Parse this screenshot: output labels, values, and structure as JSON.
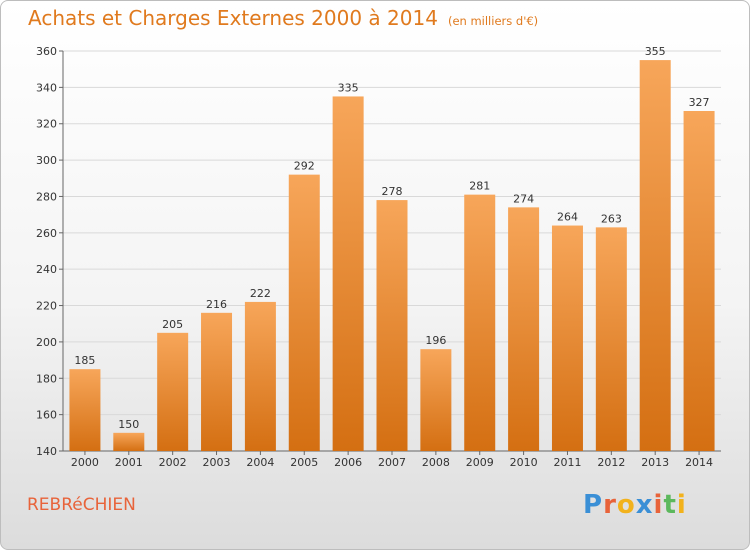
{
  "header": {
    "title": "Achats et Charges Externes 2000 à 2014",
    "subtitle": "(en milliers d'€)"
  },
  "footer": {
    "commune": "REBRéCHIEN",
    "logo": "Proxiti",
    "logo_colors": [
      "#3a8fd6",
      "#e8633a",
      "#f2b21c",
      "#3a8fd6",
      "#e8633a",
      "#5cb85c",
      "#f2b21c"
    ]
  },
  "colors": {
    "bar_top": "#f7a65a",
    "bar_bottom": "#d46f12",
    "title": "#e07a1e",
    "commune": "#e8633a",
    "grid": "#d9d9d9"
  },
  "chart_data": {
    "type": "bar",
    "title": "Achats et Charges Externes 2000 à 2014",
    "subtitle": "(en milliers d'€)",
    "xlabel": "",
    "ylabel": "",
    "categories": [
      "2000",
      "2001",
      "2002",
      "2003",
      "2004",
      "2005",
      "2006",
      "2007",
      "2008",
      "2009",
      "2010",
      "2011",
      "2012",
      "2013",
      "2014"
    ],
    "values": [
      185,
      150,
      205,
      216,
      222,
      292,
      335,
      278,
      196,
      281,
      274,
      264,
      263,
      355,
      327
    ],
    "ylim": [
      140,
      360
    ],
    "yticks": [
      140,
      160,
      180,
      200,
      220,
      240,
      260,
      280,
      300,
      320,
      340,
      360
    ],
    "grid": true,
    "data_labels": true
  }
}
